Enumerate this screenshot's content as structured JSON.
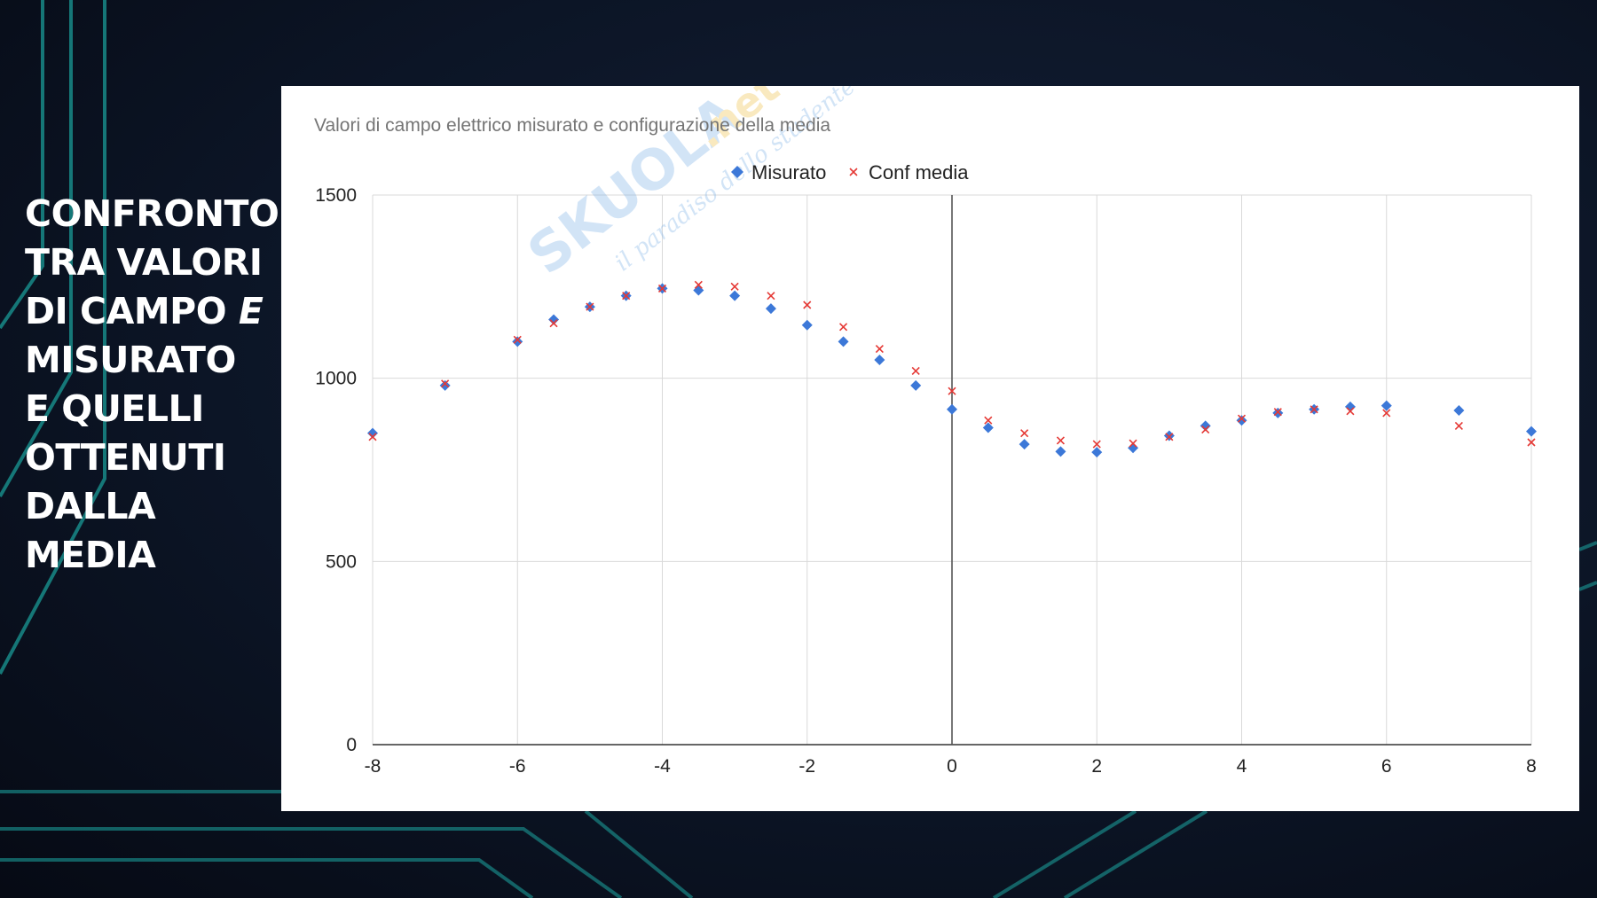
{
  "slide": {
    "title_lines": [
      [
        "CONFRONTO"
      ],
      [
        "TRA VALORI"
      ],
      [
        "DI CAMPO ",
        "E"
      ],
      [
        "MISURATO"
      ],
      [
        "E QUELLI"
      ],
      [
        "OTTENUTI"
      ],
      [
        "DALLA"
      ],
      [
        "MEDIA"
      ]
    ]
  },
  "watermark": {
    "brand": "SKUOLA",
    "suffix": ".net",
    "tagline": "il paradiso dello studente"
  },
  "colors": {
    "background": "#0c1526",
    "accent_lines": "#1a9a96",
    "misurato": "#3c78d8",
    "conf_media": "#e53935",
    "gridline": "#d9d9d9",
    "zero_axis": "#555555"
  },
  "chart_data": {
    "type": "scatter",
    "title": "Valori di campo elettrico misurato e configurazione della media",
    "xlabel": "",
    "ylabel": "",
    "xlim": [
      -8,
      8
    ],
    "ylim": [
      0,
      1500
    ],
    "xticks": [
      -8,
      -6,
      -4,
      -2,
      0,
      2,
      4,
      6,
      8
    ],
    "yticks": [
      0,
      500,
      1000,
      1500
    ],
    "grid": true,
    "legend": "top-center",
    "series": [
      {
        "name": "Misurato",
        "marker": "diamond",
        "x": [
          -8,
          -7,
          -6,
          -5.5,
          -5,
          -4.5,
          -4,
          -3.5,
          -3,
          -2.5,
          -2,
          -1.5,
          -1,
          -0.5,
          0,
          0.5,
          1,
          1.5,
          2,
          2.5,
          3,
          3.5,
          4,
          4.5,
          5,
          5.5,
          6,
          7,
          8
        ],
        "y": [
          850,
          980,
          1100,
          1160,
          1195,
          1225,
          1245,
          1240,
          1225,
          1190,
          1145,
          1100,
          1050,
          980,
          915,
          865,
          820,
          800,
          798,
          810,
          843,
          870,
          885,
          905,
          915,
          922,
          925,
          912,
          855
        ]
      },
      {
        "name": "Conf media",
        "marker": "x",
        "x": [
          -8,
          -7,
          -6,
          -5.5,
          -5,
          -4.5,
          -4,
          -3.5,
          -3,
          -2.5,
          -2,
          -1.5,
          -1,
          -0.5,
          0,
          0.5,
          1,
          1.5,
          2,
          2.5,
          3,
          3.5,
          4,
          4.5,
          5,
          5.5,
          6,
          7,
          8
        ],
        "y": [
          840,
          985,
          1105,
          1150,
          1195,
          1225,
          1245,
          1255,
          1250,
          1225,
          1200,
          1140,
          1080,
          1020,
          965,
          885,
          850,
          830,
          820,
          822,
          840,
          860,
          890,
          908,
          915,
          910,
          905,
          870,
          825
        ]
      }
    ]
  }
}
